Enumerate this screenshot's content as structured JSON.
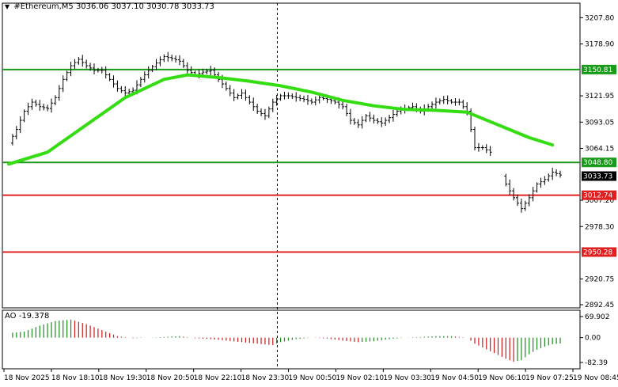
{
  "header": {
    "symbol": "#Ethereum,M5",
    "ohlc": "3036.06 3037.10 3030.78 3033.73"
  },
  "ao": {
    "label": "AO -19.378"
  },
  "colors": {
    "candle": "#000000",
    "ma": "#33dd11",
    "resistance_line": "#1a9a1a",
    "support_line": "#e02020",
    "ao_up": "#1a8a1a",
    "ao_down": "#cc1a1a"
  },
  "chart_data": {
    "type": "line",
    "title": "#Ethereum,M5",
    "y_ticks": [
      "3207.80",
      "3178.90",
      "3121.95",
      "3093.05",
      "3064.15",
      "3007.20",
      "2978.30",
      "2920.75",
      "2892.45"
    ],
    "ylim": [
      2892.45,
      3222
    ],
    "x_ticks": [
      "18 Nov 2025",
      "18 Nov 18:10",
      "18 Nov 19:30",
      "18 Nov 20:50",
      "18 Nov 22:10",
      "18 Nov 23:30",
      "19 Nov 00:50",
      "19 Nov 02:10",
      "19 Nov 03:30",
      "19 Nov 04:50",
      "19 Nov 06:10",
      "19 Nov 07:25",
      "19 Nov 08:45"
    ],
    "levels": [
      {
        "label": "3150.81",
        "value": 3150.81,
        "kind": "resistance"
      },
      {
        "label": "3048.80",
        "value": 3048.8,
        "kind": "resistance"
      },
      {
        "label": "3012.74",
        "value": 3012.74,
        "kind": "support"
      },
      {
        "label": "2950.28",
        "value": 2950.28,
        "kind": "support"
      }
    ],
    "current_price": {
      "label": "3033.73",
      "value": 3033.73
    },
    "price_series": [
      {
        "i": 0,
        "v": 3070
      },
      {
        "i": 2,
        "v": 3085
      },
      {
        "i": 4,
        "v": 3105
      },
      {
        "i": 6,
        "v": 3115
      },
      {
        "i": 8,
        "v": 3110
      },
      {
        "i": 10,
        "v": 3108
      },
      {
        "i": 12,
        "v": 3120
      },
      {
        "i": 14,
        "v": 3140
      },
      {
        "i": 16,
        "v": 3155
      },
      {
        "i": 18,
        "v": 3162
      },
      {
        "i": 20,
        "v": 3155
      },
      {
        "i": 22,
        "v": 3150
      },
      {
        "i": 24,
        "v": 3150
      },
      {
        "i": 26,
        "v": 3140
      },
      {
        "i": 28,
        "v": 3130
      },
      {
        "i": 30,
        "v": 3125
      },
      {
        "i": 32,
        "v": 3128
      },
      {
        "i": 34,
        "v": 3140
      },
      {
        "i": 36,
        "v": 3150
      },
      {
        "i": 38,
        "v": 3158
      },
      {
        "i": 40,
        "v": 3165
      },
      {
        "i": 42,
        "v": 3163
      },
      {
        "i": 44,
        "v": 3160
      },
      {
        "i": 46,
        "v": 3150
      },
      {
        "i": 48,
        "v": 3145
      },
      {
        "i": 50,
        "v": 3148
      },
      {
        "i": 52,
        "v": 3150
      },
      {
        "i": 54,
        "v": 3140
      },
      {
        "i": 56,
        "v": 3130
      },
      {
        "i": 58,
        "v": 3120
      },
      {
        "i": 60,
        "v": 3125
      },
      {
        "i": 62,
        "v": 3115
      },
      {
        "i": 64,
        "v": 3105
      },
      {
        "i": 66,
        "v": 3100
      },
      {
        "i": 68,
        "v": 3115
      },
      {
        "i": 70,
        "v": 3122
      },
      {
        "i": 72,
        "v": 3122
      },
      {
        "i": 74,
        "v": 3120
      },
      {
        "i": 76,
        "v": 3118
      },
      {
        "i": 78,
        "v": 3115
      },
      {
        "i": 80,
        "v": 3120
      },
      {
        "i": 82,
        "v": 3118
      },
      {
        "i": 84,
        "v": 3115
      },
      {
        "i": 86,
        "v": 3110
      },
      {
        "i": 88,
        "v": 3095
      },
      {
        "i": 90,
        "v": 3090
      },
      {
        "i": 92,
        "v": 3100
      },
      {
        "i": 94,
        "v": 3095
      },
      {
        "i": 96,
        "v": 3092
      },
      {
        "i": 98,
        "v": 3098
      },
      {
        "i": 100,
        "v": 3105
      },
      {
        "i": 102,
        "v": 3108
      },
      {
        "i": 104,
        "v": 3110
      },
      {
        "i": 106,
        "v": 3105
      },
      {
        "i": 108,
        "v": 3110
      },
      {
        "i": 110,
        "v": 3115
      },
      {
        "i": 112,
        "v": 3118
      },
      {
        "i": 114,
        "v": 3115
      },
      {
        "i": 116,
        "v": 3115
      },
      {
        "i": 118,
        "v": 3105
      },
      {
        "i": 120,
        "v": 3065
      },
      {
        "i": 122,
        "v": 3065
      },
      {
        "i": 124,
        "v": 3060
      },
      {
        "i": 128,
        "v": 3025
      },
      {
        "i": 130,
        "v": 3010
      },
      {
        "i": 132,
        "v": 2998
      },
      {
        "i": 134,
        "v": 3010
      },
      {
        "i": 136,
        "v": 3025
      },
      {
        "i": 138,
        "v": 3030
      },
      {
        "i": 140,
        "v": 3038
      },
      {
        "i": 142,
        "v": 3035
      }
    ],
    "ma_series": [
      {
        "i": 0,
        "v": 3047
      },
      {
        "i": 10,
        "v": 3060
      },
      {
        "i": 20,
        "v": 3090
      },
      {
        "i": 30,
        "v": 3120
      },
      {
        "i": 40,
        "v": 3140
      },
      {
        "i": 46,
        "v": 3145
      },
      {
        "i": 54,
        "v": 3142
      },
      {
        "i": 62,
        "v": 3138
      },
      {
        "i": 70,
        "v": 3133
      },
      {
        "i": 78,
        "v": 3126
      },
      {
        "i": 86,
        "v": 3117
      },
      {
        "i": 94,
        "v": 3111
      },
      {
        "i": 102,
        "v": 3107
      },
      {
        "i": 110,
        "v": 3106
      },
      {
        "i": 118,
        "v": 3104
      },
      {
        "i": 126,
        "v": 3090
      },
      {
        "i": 134,
        "v": 3076
      },
      {
        "i": 140,
        "v": 3068
      }
    ],
    "ao_ticks": [
      "69.902",
      "0.00",
      "-82.39"
    ],
    "ao_ylim": [
      -82.39,
      69.902
    ],
    "ao_series": [
      {
        "i": 0,
        "v": 15
      },
      {
        "i": 4,
        "v": 20
      },
      {
        "i": 8,
        "v": 40
      },
      {
        "i": 12,
        "v": 55
      },
      {
        "i": 16,
        "v": 60
      },
      {
        "i": 20,
        "v": 45
      },
      {
        "i": 24,
        "v": 25
      },
      {
        "i": 28,
        "v": 5
      },
      {
        "i": 32,
        "v": -2
      },
      {
        "i": 36,
        "v": 0
      },
      {
        "i": 40,
        "v": 2
      },
      {
        "i": 44,
        "v": 5
      },
      {
        "i": 48,
        "v": -2
      },
      {
        "i": 52,
        "v": -5
      },
      {
        "i": 56,
        "v": -10
      },
      {
        "i": 60,
        "v": -15
      },
      {
        "i": 64,
        "v": -20
      },
      {
        "i": 68,
        "v": -25
      },
      {
        "i": 70,
        "v": -15
      },
      {
        "i": 74,
        "v": -5
      },
      {
        "i": 78,
        "v": 0
      },
      {
        "i": 82,
        "v": -3
      },
      {
        "i": 86,
        "v": -10
      },
      {
        "i": 90,
        "v": -15
      },
      {
        "i": 94,
        "v": -12
      },
      {
        "i": 98,
        "v": -5
      },
      {
        "i": 102,
        "v": 0
      },
      {
        "i": 106,
        "v": 2
      },
      {
        "i": 110,
        "v": 5
      },
      {
        "i": 114,
        "v": 5
      },
      {
        "i": 118,
        "v": 0
      },
      {
        "i": 120,
        "v": -20
      },
      {
        "i": 124,
        "v": -45
      },
      {
        "i": 128,
        "v": -70
      },
      {
        "i": 130,
        "v": -80
      },
      {
        "i": 132,
        "v": -75
      },
      {
        "i": 134,
        "v": -55
      },
      {
        "i": 136,
        "v": -40
      },
      {
        "i": 138,
        "v": -30
      },
      {
        "i": 140,
        "v": -22
      },
      {
        "i": 142,
        "v": -19.378
      }
    ],
    "n_bars": 142
  }
}
